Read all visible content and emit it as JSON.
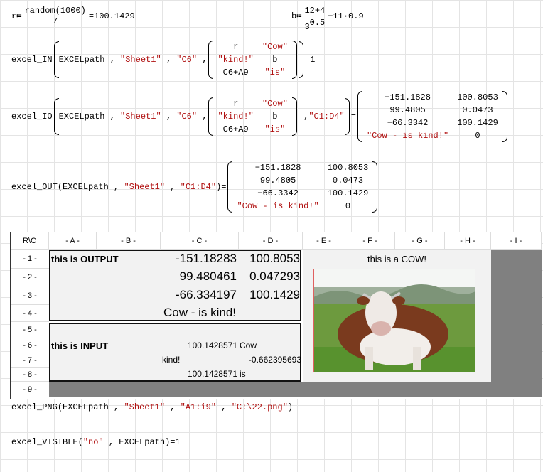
{
  "r_def": {
    "var": "r",
    "assign": "≔",
    "func": "random",
    "arg": "1000",
    "den": "7",
    "eq": "=",
    "result": "100.1429"
  },
  "b_def": {
    "var": "b",
    "assign": "≔",
    "num": "12+4",
    "base": "3",
    "exp": "0.5",
    "tail": "−11·0.9"
  },
  "excel_in": {
    "func": "excel_IN",
    "path": "EXCELpath",
    "sheet": "\"Sheet1\"",
    "cell": "\"C6\"",
    "matrix": [
      [
        "r",
        "\"Cow\""
      ],
      [
        "\"kind!\"",
        "b"
      ],
      [
        "C6+A9",
        "\"is\""
      ]
    ],
    "result": "1"
  },
  "excel_io": {
    "func": "excel_IO",
    "path": "EXCELpath",
    "sheet": "\"Sheet1\"",
    "cell": "\"C6\"",
    "matrix": [
      [
        "r",
        "\"Cow\""
      ],
      [
        "\"kind!\"",
        "b"
      ],
      [
        "C6+A9",
        "\"is\""
      ]
    ],
    "range": "\"C1:D4\"",
    "result": [
      [
        "−151.1828",
        "100.8053"
      ],
      [
        "99.4805",
        "0.0473"
      ],
      [
        "−66.3342",
        "100.1429"
      ],
      [
        "\"Cow - is kind!\"",
        "0"
      ]
    ]
  },
  "excel_out": {
    "func": "excel_OUT",
    "path": "EXCELpath",
    "sheet": "\"Sheet1\"",
    "range": "\"C1:D4\"",
    "result": [
      [
        "−151.1828",
        "100.8053"
      ],
      [
        "99.4805",
        "0.0473"
      ],
      [
        "−66.3342",
        "100.1429"
      ],
      [
        "\"Cow - is kind!\"",
        "0"
      ]
    ]
  },
  "sheet": {
    "corner": "R\\C",
    "columns": [
      "- A -",
      "- B -",
      "- C -",
      "- D -",
      "- E -",
      "- F -",
      "- G -",
      "- H -",
      "- I -"
    ],
    "rows": [
      "- 1 -",
      "- 2 -",
      "- 3 -",
      "- 4 -",
      "- 5 -",
      "- 6 -",
      "- 7 -",
      "- 8 -",
      "- 9 -"
    ],
    "output_label": "this is OUTPUT",
    "output_values": [
      [
        "-151.18283",
        "100.8053"
      ],
      [
        "99.480461",
        "0.047293"
      ],
      [
        "-66.334197",
        "100.1429"
      ]
    ],
    "output_text": "Cow - is kind!",
    "input_label": "this is INPUT",
    "c6": "100.1428571",
    "d6": "Cow",
    "c7": "kind!",
    "d7": "-0.662395693",
    "c8": "100.1428571",
    "d8": "is",
    "picture_caption": "this is a COW!"
  },
  "excel_png": {
    "func": "excel_PNG",
    "path": "EXCELpath",
    "sheet": "\"Sheet1\"",
    "range": "\"A1:i9\"",
    "file": "\"C:\\22.png\""
  },
  "excel_visible": {
    "func": "excel_VISIBLE",
    "arg": "\"no\"",
    "path": "EXCELpath",
    "eq": "=",
    "result": "1"
  },
  "colors": {
    "string": "#b01010",
    "sheet_gray": "#808080",
    "sheet_fill": "#f2f2f2"
  }
}
